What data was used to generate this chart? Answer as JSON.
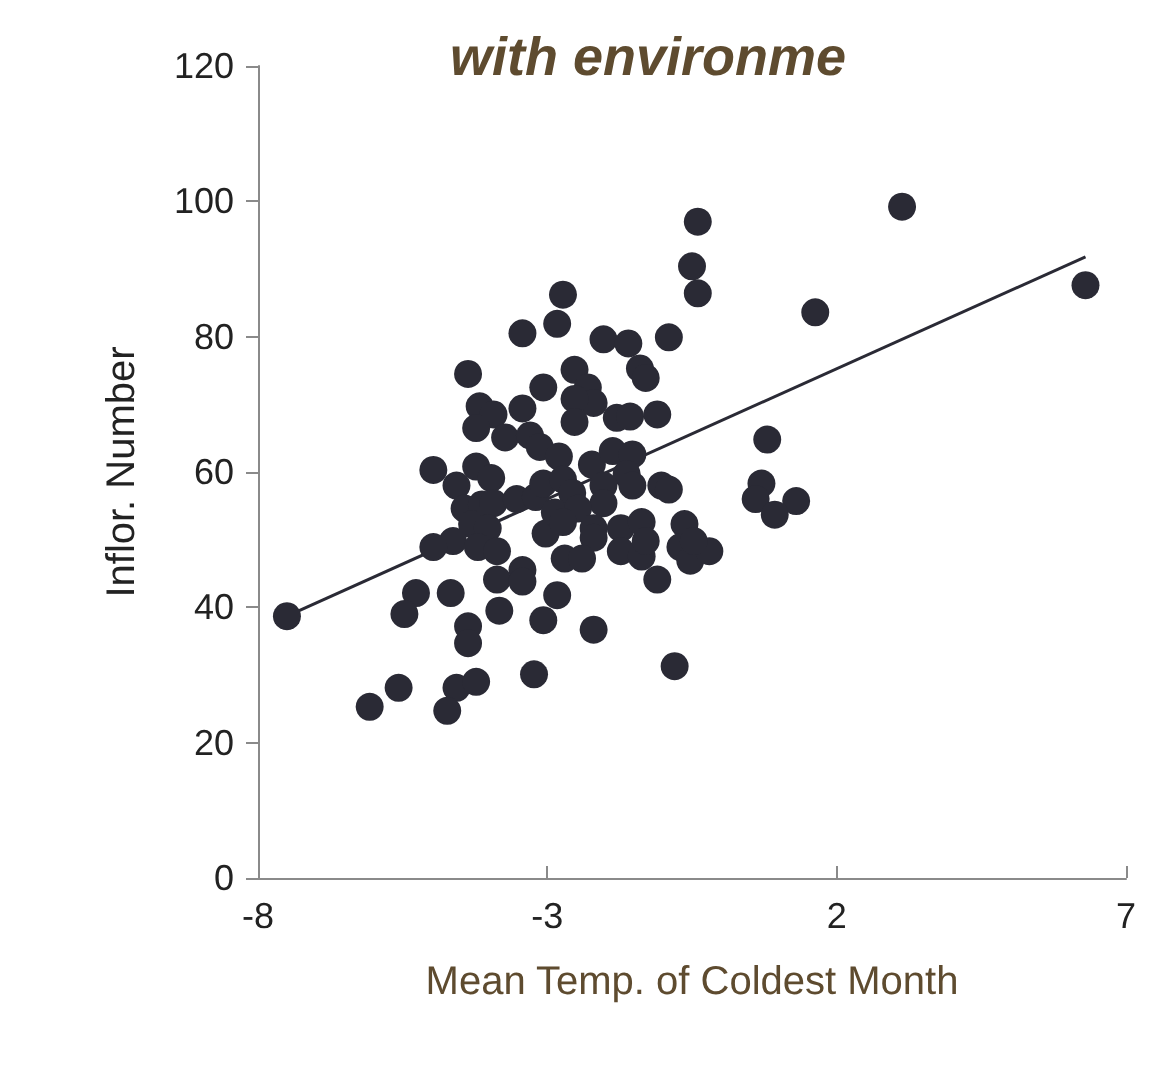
{
  "chart_data": {
    "type": "scatter",
    "title": "with environme",
    "xlabel": "Mean Temp. of Coldest Month",
    "ylabel": "Inflor. Number",
    "xlim": [
      -8,
      7
    ],
    "xticks": [
      -8,
      -3,
      2,
      7
    ],
    "ylim": [
      0,
      120
    ],
    "yticks": [
      0,
      20,
      40,
      60,
      80,
      100,
      120
    ],
    "grid": false,
    "marker": "circle",
    "series": [
      {
        "color": "#2a2a35",
        "x": [
          -7.5,
          -6.07,
          -5.57,
          -3.43,
          -4.37,
          -4.17,
          -3.93,
          -3.43,
          -3.07,
          -4.23,
          -3.73,
          -3.3,
          -3.13,
          -4.97,
          -4.23,
          -3.97,
          -4.57,
          -4.43,
          -4.13,
          -3.93,
          -3.53,
          -3.2,
          -3.07,
          -4.3,
          -4.03,
          -4.63,
          -4.97,
          -4.2,
          -3.87,
          -3.03,
          -3.87,
          -3.43,
          -3.43,
          -5.27,
          -4.67,
          -5.47,
          -3.83,
          -4.37,
          -4.37,
          -3.07,
          -4.57,
          -4.23,
          -4.73,
          -3.23,
          -0.4,
          -0.5,
          -0.4,
          1.63,
          -2.73,
          -2.83,
          -2.03,
          -1.6,
          -0.9,
          -2.53,
          -1.4,
          -1.3,
          -2.3,
          -2.2,
          -2.53,
          -2.53,
          -1.8,
          -1.57,
          -1.1,
          0.8,
          -2.8,
          -2.23,
          -1.87,
          -1.53,
          -1.63,
          -1.53,
          -2.73,
          -2.57,
          -2.03,
          -2.03,
          -1.03,
          -0.9,
          0.7,
          0.6,
          1.3,
          0.93,
          -2.87,
          -2.47,
          -2.73,
          -2.2,
          -2.2,
          -1.73,
          -1.37,
          -1.73,
          -1.37,
          -1.3,
          -0.63,
          -0.7,
          -0.53,
          -0.2,
          -0.47,
          -2.7,
          -2.4,
          -1.1,
          -2.83,
          -2.2,
          -0.8,
          3.13,
          6.3
        ],
        "values": [
          38.7,
          25.3,
          28.1,
          80.5,
          74.5,
          69.7,
          68.5,
          69.4,
          72.5,
          66.5,
          65.1,
          65.4,
          63.7,
          60.3,
          60.8,
          59.1,
          58,
          54.6,
          55.2,
          55.4,
          56,
          56.3,
          58.3,
          52.3,
          51.7,
          49.8,
          48.9,
          48.9,
          48.3,
          50.9,
          44.1,
          45.5,
          43.8,
          42.1,
          42.1,
          39,
          39.5,
          37.2,
          34.7,
          38.1,
          28.1,
          29,
          24.7,
          30.1,
          97,
          90.4,
          86.4,
          83.6,
          86.2,
          81.9,
          79.6,
          79,
          79.9,
          75.1,
          75.3,
          73.9,
          72.5,
          70.2,
          70.8,
          67.4,
          68,
          68.2,
          68.5,
          64.8,
          62.3,
          61.1,
          63.1,
          62.6,
          59.7,
          58,
          58.9,
          56.9,
          58,
          55.4,
          58,
          57.4,
          58.3,
          56,
          55.7,
          53.7,
          54,
          54.6,
          52.6,
          51.7,
          50.3,
          51.7,
          52.6,
          48.3,
          47.5,
          49.8,
          52.3,
          48.9,
          46.9,
          48.3,
          49.8,
          47.2,
          47.2,
          44.1,
          41.8,
          36.7,
          31.3,
          99.2,
          87.6
        ]
      },
      {
        "type": "line",
        "color": "#2a2a35",
        "x": [
          -7.5,
          6.3
        ],
        "values": [
          38.7,
          91.8
        ],
        "marker": "none"
      }
    ]
  }
}
